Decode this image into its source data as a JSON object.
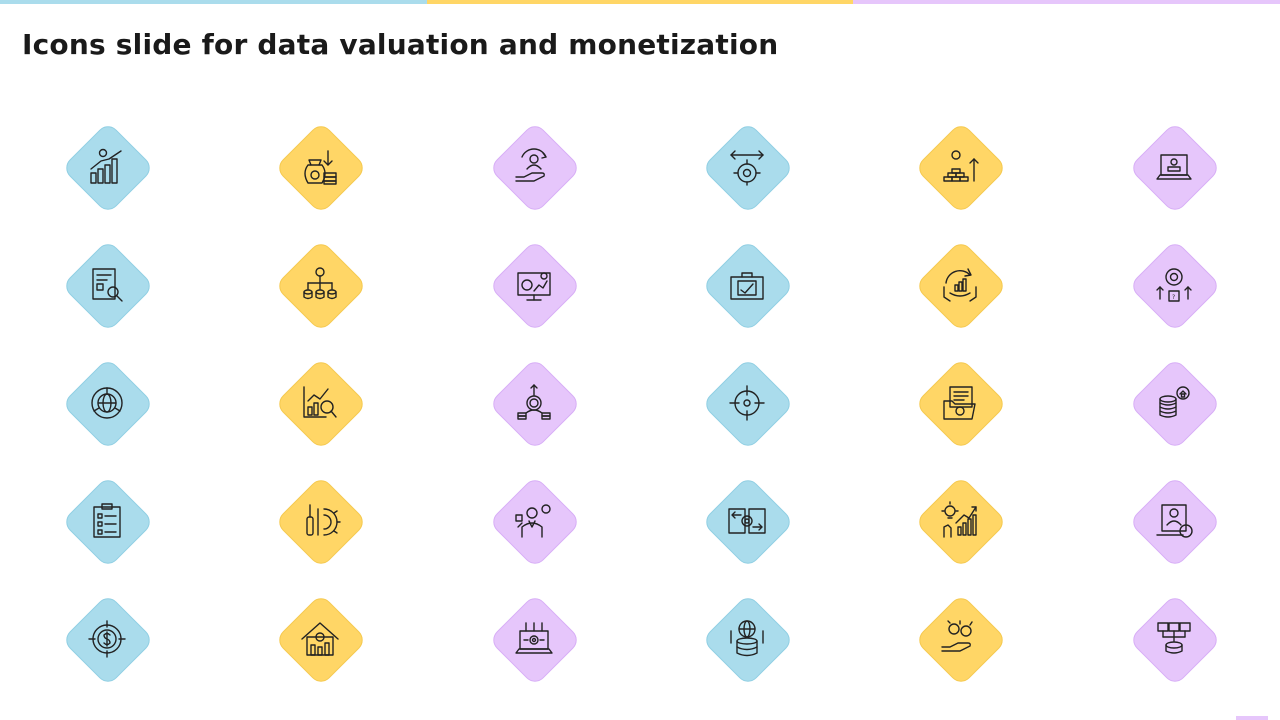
{
  "title": "Icons slide for data valuation and monetization",
  "colors": {
    "blue": "#aadcec",
    "yellow": "#ffd666",
    "purple": "#e6c6fb",
    "stroke": "#222222"
  },
  "icons": [
    [
      "bar-chart-growth-icon",
      "money-bags-down-icon",
      "hand-user-cycle-icon",
      "gear-arrows-icon",
      "coin-stack-growth-icon",
      "laptop-bank-icon"
    ],
    [
      "report-search-icon",
      "dollar-hierarchy-icon",
      "monitor-analytics-icon",
      "briefcase-report-icon",
      "hands-growth-chart-icon",
      "gear-target-question-icon"
    ],
    [
      "globe-pie-icon",
      "chart-magnifier-icon",
      "dollar-growth-coins-icon",
      "target-crosshair-icon",
      "folder-gear-document-icon",
      "coins-home-icon"
    ],
    [
      "clipboard-checklist-icon",
      "tools-gear-icon",
      "businessman-dollar-icon",
      "documents-gear-exchange-icon",
      "idea-growth-chart-icon",
      "profile-dollar-icon"
    ],
    [
      "target-dollar-icon",
      "house-gear-chart-icon",
      "laptop-gear-icon",
      "globe-database-icon",
      "hand-coins-icon",
      "images-database-icon"
    ]
  ]
}
